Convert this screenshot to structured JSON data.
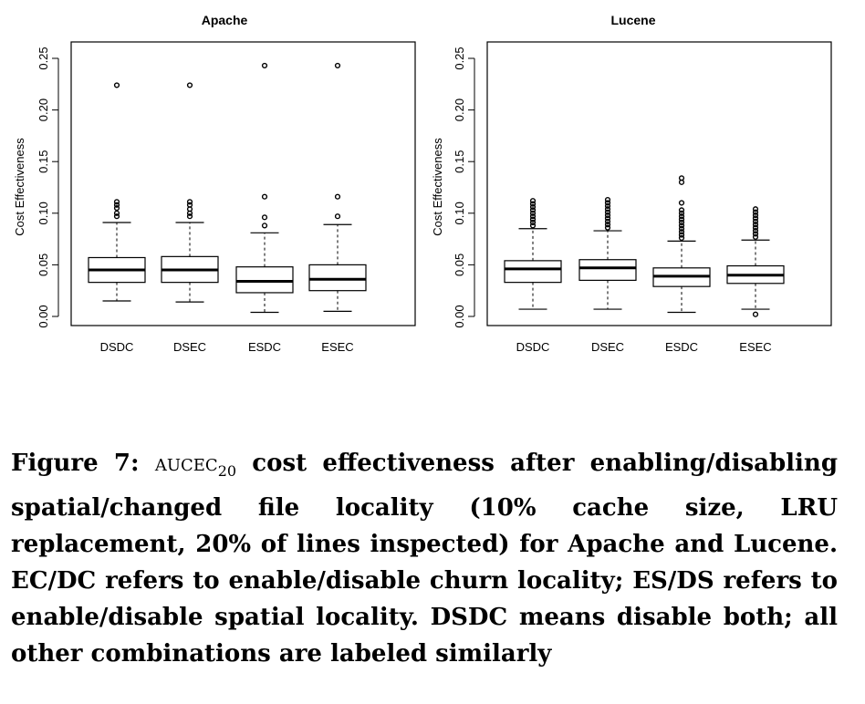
{
  "chart_data": [
    {
      "type": "box",
      "title": "Apache",
      "ylabel": "Cost Effectiveness",
      "xlabel": "",
      "ylim": [
        0,
        0.25
      ],
      "yticks": [
        "0.00",
        "0.05",
        "0.10",
        "0.15",
        "0.20",
        "0.25"
      ],
      "ytick_values": [
        0,
        0.05,
        0.1,
        0.15,
        0.2,
        0.25
      ],
      "categories": [
        "DSDC",
        "DSEC",
        "ESDC",
        "ESEC"
      ],
      "boxes": [
        {
          "name": "DSDC",
          "whisker_low": 0.015,
          "q1": 0.033,
          "median": 0.045,
          "q3": 0.057,
          "whisker_high": 0.091,
          "outliers": [
            0.097,
            0.1,
            0.105,
            0.108,
            0.111,
            0.224
          ]
        },
        {
          "name": "DSEC",
          "whisker_low": 0.014,
          "q1": 0.033,
          "median": 0.045,
          "q3": 0.058,
          "whisker_high": 0.091,
          "outliers": [
            0.097,
            0.1,
            0.104,
            0.108,
            0.111,
            0.224
          ]
        },
        {
          "name": "ESDC",
          "whisker_low": 0.004,
          "q1": 0.023,
          "median": 0.034,
          "q3": 0.048,
          "whisker_high": 0.081,
          "outliers": [
            0.088,
            0.096,
            0.116,
            0.243
          ]
        },
        {
          "name": "ESEC",
          "whisker_low": 0.005,
          "q1": 0.025,
          "median": 0.036,
          "q3": 0.05,
          "whisker_high": 0.089,
          "outliers": [
            0.097,
            0.116,
            0.243
          ]
        }
      ]
    },
    {
      "type": "box",
      "title": "Lucene",
      "ylabel": "Cost Effectiveness",
      "xlabel": "",
      "ylim": [
        0,
        0.25
      ],
      "yticks": [
        "0.00",
        "0.05",
        "0.10",
        "0.15",
        "0.20",
        "0.25"
      ],
      "ytick_values": [
        0,
        0.05,
        0.1,
        0.15,
        0.2,
        0.25
      ],
      "categories": [
        "DSDC",
        "DSEC",
        "ESDC",
        "ESEC"
      ],
      "boxes": [
        {
          "name": "DSDC",
          "whisker_low": 0.007,
          "q1": 0.033,
          "median": 0.046,
          "q3": 0.054,
          "whisker_high": 0.085,
          "outliers": [
            0.088,
            0.091,
            0.094,
            0.097,
            0.1,
            0.103,
            0.106,
            0.109,
            0.112
          ]
        },
        {
          "name": "DSEC",
          "whisker_low": 0.007,
          "q1": 0.035,
          "median": 0.047,
          "q3": 0.055,
          "whisker_high": 0.083,
          "outliers": [
            0.086,
            0.089,
            0.092,
            0.095,
            0.098,
            0.101,
            0.104,
            0.107,
            0.11,
            0.113
          ]
        },
        {
          "name": "ESDC",
          "whisker_low": 0.004,
          "q1": 0.029,
          "median": 0.039,
          "q3": 0.047,
          "whisker_high": 0.073,
          "outliers": [
            0.076,
            0.079,
            0.082,
            0.085,
            0.088,
            0.091,
            0.094,
            0.097,
            0.1,
            0.103,
            0.11,
            0.13,
            0.134
          ]
        },
        {
          "name": "ESEC",
          "whisker_low": 0.007,
          "q1": 0.032,
          "median": 0.04,
          "q3": 0.049,
          "whisker_high": 0.074,
          "outliers": [
            0.002,
            0.077,
            0.08,
            0.083,
            0.086,
            0.089,
            0.092,
            0.095,
            0.098,
            0.101,
            0.104
          ]
        }
      ]
    }
  ],
  "caption": {
    "label": "Figure 7:",
    "metric": "aucec",
    "metric_sub": "20",
    "text": " cost effectiveness after enabling/disabling spatial/changed file locality (10% cache size, LRU replacement, 20% of lines inspected) for Apache and Lucene. EC/DC refers to enable/disable churn locality; ES/DS refers to enable/disable spatial locality. DSDC means disable both; all other combinations are labeled similarly"
  }
}
